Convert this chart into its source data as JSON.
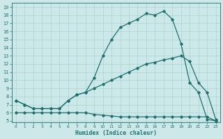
{
  "xlabel": "Humidex (Indice chaleur)",
  "bg_color": "#cce8e8",
  "line_color": "#1f6f6f",
  "grid_color": "#a8d4d4",
  "xlim": [
    -0.5,
    23.5
  ],
  "ylim": [
    4.8,
    19.5
  ],
  "yticks": [
    5,
    6,
    7,
    8,
    9,
    10,
    11,
    12,
    13,
    14,
    15,
    16,
    17,
    18,
    19
  ],
  "xticks": [
    0,
    1,
    2,
    3,
    4,
    5,
    6,
    7,
    8,
    9,
    10,
    11,
    12,
    13,
    14,
    15,
    16,
    17,
    18,
    19,
    20,
    21,
    22,
    23
  ],
  "line1_x": [
    0,
    1,
    2,
    3,
    4,
    5,
    6,
    7,
    8,
    9,
    10,
    11,
    12,
    13,
    14,
    15,
    16,
    17,
    18,
    19,
    20,
    21,
    22,
    23
  ],
  "line1_y": [
    7.5,
    7.0,
    6.5,
    6.5,
    6.5,
    6.5,
    7.5,
    8.2,
    8.5,
    10.3,
    13.0,
    15.0,
    16.5,
    17.0,
    17.5,
    18.2,
    18.0,
    18.5,
    17.5,
    14.5,
    9.7,
    8.5,
    5.2,
    5.0
  ],
  "line2_x": [
    0,
    1,
    2,
    3,
    4,
    5,
    6,
    7,
    8,
    9,
    10,
    11,
    12,
    13,
    14,
    15,
    16,
    17,
    18,
    19,
    20,
    21,
    22,
    23
  ],
  "line2_y": [
    7.5,
    7.0,
    6.5,
    6.5,
    6.5,
    6.5,
    7.5,
    8.2,
    8.5,
    9.0,
    9.5,
    10.0,
    10.5,
    11.0,
    11.5,
    12.0,
    12.2,
    12.5,
    12.7,
    13.0,
    12.3,
    9.7,
    8.5,
    5.2
  ],
  "line3_x": [
    0,
    1,
    2,
    3,
    4,
    5,
    6,
    7,
    8,
    9,
    10,
    11,
    12,
    13,
    14,
    15,
    16,
    17,
    18,
    19,
    20,
    21,
    22,
    23
  ],
  "line3_y": [
    6.0,
    6.0,
    6.0,
    6.0,
    6.0,
    6.0,
    6.0,
    6.0,
    6.0,
    5.8,
    5.7,
    5.6,
    5.5,
    5.5,
    5.5,
    5.5,
    5.5,
    5.5,
    5.5,
    5.5,
    5.5,
    5.5,
    5.5,
    5.0
  ]
}
